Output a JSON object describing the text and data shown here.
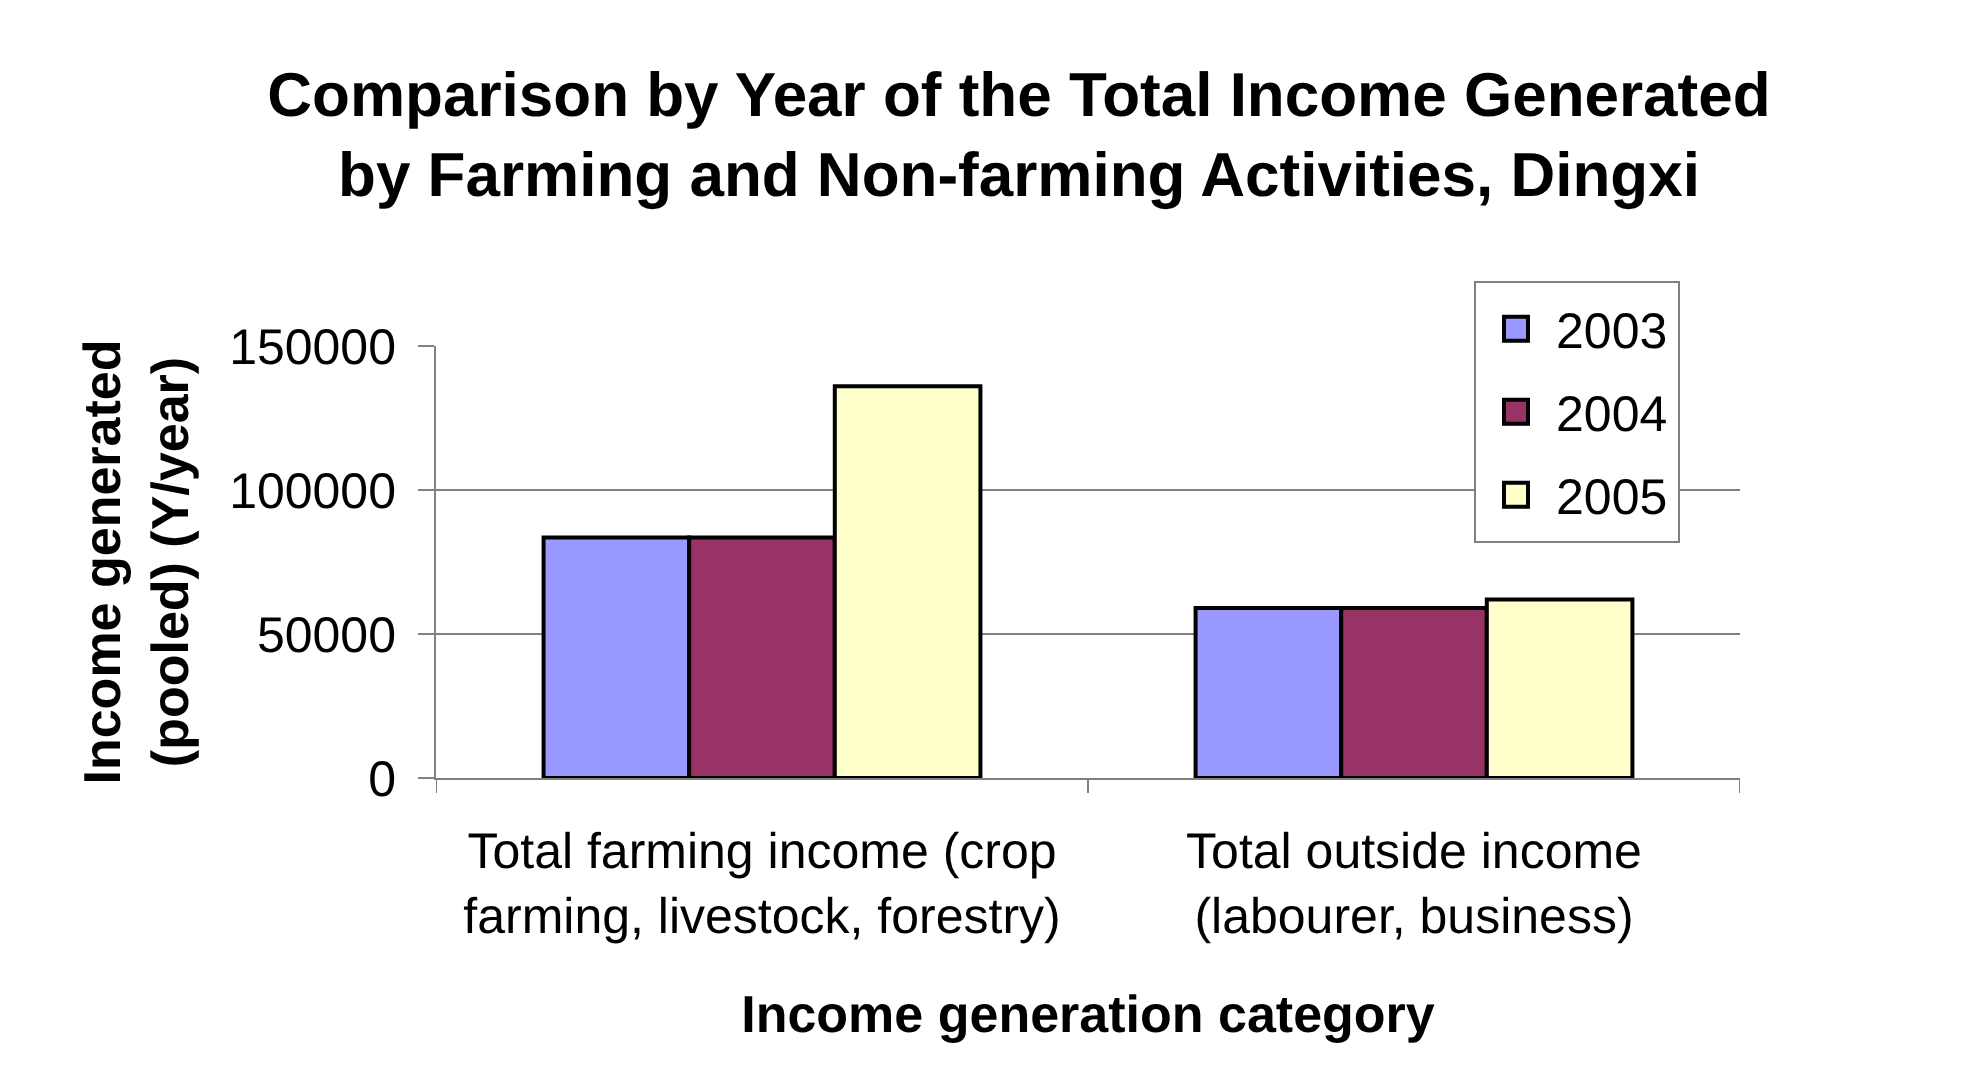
{
  "chart_data": {
    "type": "bar",
    "title": "Comparison by Year of the Total Income Generated\nby Farming and Non-farming Activities, Dingxi",
    "xlabel": "Income generation category",
    "ylabel": "Income generated\n(pooled) (Y/year)",
    "categories": [
      "Total farming income (crop\nfarming, livestock, forestry)",
      "Total outside income\n(labourer, business)"
    ],
    "series": [
      {
        "name": "2003",
        "color": "#9999ff",
        "values": [
          83500,
          59000
        ]
      },
      {
        "name": "2004",
        "color": "#993366",
        "values": [
          83500,
          59000
        ]
      },
      {
        "name": "2005",
        "color": "#ffffcc",
        "values": [
          136000,
          62000
        ]
      }
    ],
    "ylim": [
      0,
      150000
    ],
    "yticks": [
      0,
      50000,
      100000,
      150000
    ],
    "grid": "y",
    "legend": "top right"
  }
}
